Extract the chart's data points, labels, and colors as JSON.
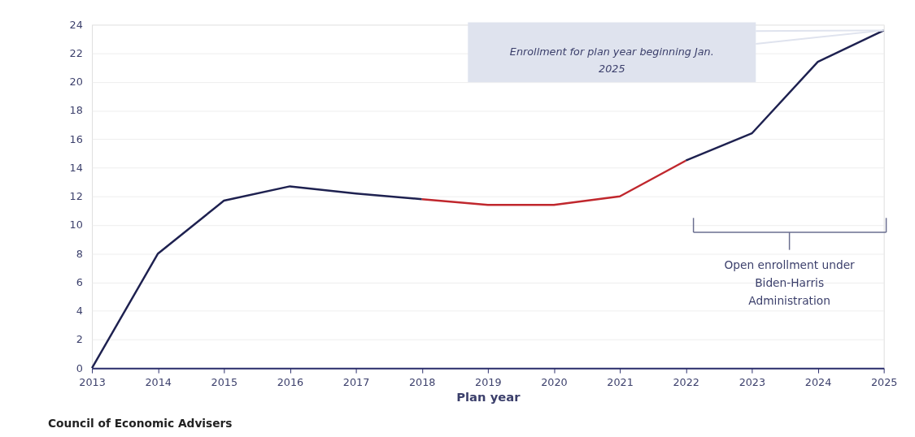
{
  "chart_data": {
    "type": "line",
    "xlabel": "Plan year",
    "x": [
      2013,
      2014,
      2015,
      2016,
      2017,
      2018,
      2019,
      2020,
      2021,
      2022,
      2023,
      2024,
      2025
    ],
    "series": [
      {
        "color": "#1e2150",
        "values": [
          0,
          8.0,
          11.7,
          12.7,
          12.2,
          11.8,
          null,
          null,
          null,
          14.5,
          16.4,
          21.4,
          23.6
        ]
      },
      {
        "color": "#c0272d",
        "values": [
          null,
          null,
          null,
          null,
          null,
          11.8,
          11.4,
          11.4,
          12.0,
          14.5,
          null,
          null,
          null
        ]
      }
    ],
    "xlim": [
      2013,
      2025
    ],
    "xticks": [
      2013,
      2014,
      2015,
      2016,
      2017,
      2018,
      2019,
      2020,
      2021,
      2022,
      2023,
      2024,
      2025
    ],
    "ylim": [
      0,
      24
    ],
    "yticks": [
      0,
      2,
      4,
      6,
      8,
      10,
      12,
      14,
      16,
      18,
      20,
      22,
      24
    ],
    "grid": "y",
    "marker": "none",
    "line_style": "solid",
    "annotations": [
      "Enrollment for plan year beginning Jan. 2025",
      "Open enrollment under Biden-Harris Administration",
      "Council of Economic Advisers"
    ]
  }
}
